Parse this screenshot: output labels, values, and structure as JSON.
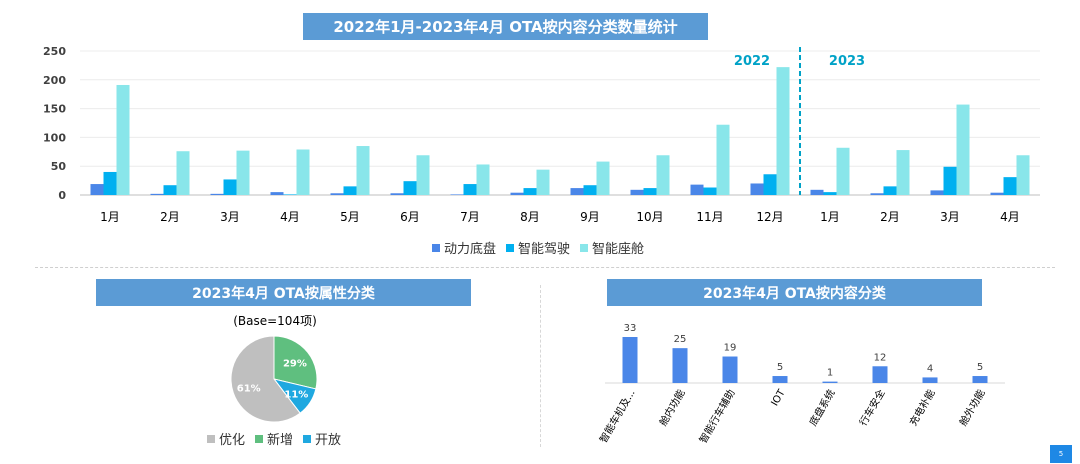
{
  "titles": {
    "main": "2022年1月-2023年4月 OTA按内容分类数量统计",
    "pie": "2023年4月 OTA按属性分类",
    "category": "2023年4月 OTA按内容分类"
  },
  "page_number": "5",
  "colors": {
    "banner": "#5b9bd5",
    "series_powertrain": "#4a86e8",
    "series_driving": "#00b0f0",
    "series_cockpit": "#89e6ea",
    "year_label": "#00a2c7",
    "pie_optimize": "#bfbfbf",
    "pie_new": "#5fbf7f",
    "pie_open": "#1fa8e0",
    "category_bar": "#4a86e8"
  },
  "chart_data": [
    {
      "type": "bar",
      "title": "2022年1月-2023年4月 OTA按内容分类数量统计",
      "categories": [
        "1月",
        "2月",
        "3月",
        "4月",
        "5月",
        "6月",
        "7月",
        "8月",
        "9月",
        "10月",
        "11月",
        "12月",
        "1月",
        "2月",
        "3月",
        "4月"
      ],
      "series": [
        {
          "name": "动力底盘",
          "values": [
            19,
            2,
            2,
            5,
            3,
            3,
            1,
            4,
            12,
            9,
            18,
            20,
            9,
            3,
            8,
            4
          ]
        },
        {
          "name": "智能驾驶",
          "values": [
            40,
            17,
            27,
            1,
            15,
            24,
            19,
            12,
            17,
            12,
            13,
            36,
            5,
            15,
            49,
            31
          ]
        },
        {
          "name": "智能座舱",
          "values": [
            191,
            76,
            77,
            79,
            85,
            69,
            53,
            44,
            58,
            69,
            122,
            222,
            82,
            78,
            157,
            69
          ]
        }
      ],
      "ylim": [
        0,
        250
      ],
      "yticks": [
        0,
        50,
        100,
        150,
        200,
        250
      ],
      "year_labels": [
        "2022",
        "2023"
      ],
      "grid": true,
      "legend": "bottom"
    },
    {
      "type": "pie",
      "title": "2023年4月 OTA按属性分类",
      "subtitle": "(Base=104项)",
      "slices": [
        {
          "name": "优化",
          "value": 61,
          "label": "61%"
        },
        {
          "name": "新增",
          "value": 29,
          "label": "29%"
        },
        {
          "name": "开放",
          "value": 11,
          "label": "11%"
        }
      ],
      "legend": "bottom"
    },
    {
      "type": "bar",
      "title": "2023年4月 OTA按内容分类",
      "categories": [
        "智能车机及...",
        "舱内功能",
        "智能行车辅助",
        "IOT",
        "底盘系统",
        "行车安全",
        "充电补能",
        "舱外功能"
      ],
      "values": [
        33,
        25,
        19,
        5,
        1,
        12,
        4,
        5
      ],
      "data_labels": true
    }
  ]
}
